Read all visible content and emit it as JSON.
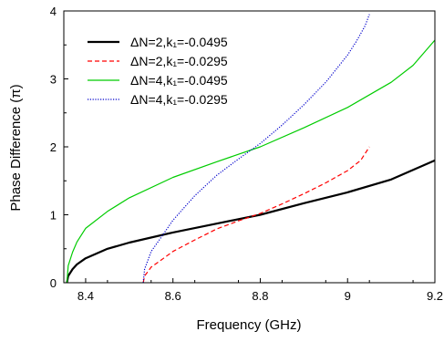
{
  "chart_data": {
    "type": "line",
    "title": "",
    "xlabel": "Frequency (GHz)",
    "ylabel": "Phase Difference (π)",
    "xlim": [
      8.35,
      9.2
    ],
    "ylim": [
      0,
      4
    ],
    "x_ticks": [
      8.4,
      8.6,
      8.8,
      9.0,
      9.2
    ],
    "x_tick_labels": [
      "8.4",
      "8.6",
      "8.8",
      "9",
      "9.2"
    ],
    "y_ticks": [
      0,
      1,
      2,
      3,
      4
    ],
    "y_tick_labels": [
      "0",
      "1",
      "2",
      "3",
      "4"
    ],
    "grid": false,
    "legend_position": "top-left",
    "series": [
      {
        "name": "ΔN=2,k₁=-0.0495",
        "color": "#000000",
        "style": "solid",
        "x": [
          8.357,
          8.36,
          8.37,
          8.38,
          8.4,
          8.45,
          8.5,
          8.6,
          8.7,
          8.8,
          8.9,
          9.0,
          9.1,
          9.2
        ],
        "y": [
          0.0,
          0.1,
          0.2,
          0.27,
          0.36,
          0.5,
          0.59,
          0.74,
          0.87,
          1.0,
          1.17,
          1.33,
          1.52,
          1.8
        ]
      },
      {
        "name": "ΔN=2,k₁=-0.0295",
        "color": "#ff0000",
        "style": "dashed",
        "x": [
          8.532,
          8.535,
          8.55,
          8.57,
          8.6,
          8.65,
          8.7,
          8.75,
          8.8,
          8.85,
          8.9,
          8.95,
          9.0,
          9.03,
          9.05
        ],
        "y": [
          0.0,
          0.1,
          0.23,
          0.32,
          0.46,
          0.63,
          0.79,
          0.91,
          1.02,
          1.16,
          1.31,
          1.47,
          1.65,
          1.8,
          2.0
        ]
      },
      {
        "name": "ΔN=4,k₁=-0.0495",
        "color": "#00cc00",
        "style": "solid",
        "x": [
          8.357,
          8.36,
          8.37,
          8.38,
          8.4,
          8.45,
          8.5,
          8.6,
          8.7,
          8.8,
          8.9,
          9.0,
          9.1,
          9.15,
          9.2
        ],
        "y": [
          0.0,
          0.25,
          0.45,
          0.6,
          0.8,
          1.05,
          1.25,
          1.55,
          1.78,
          2.0,
          2.28,
          2.58,
          2.95,
          3.2,
          3.57
        ]
      },
      {
        "name": "ΔN=4,k₁=-0.0295",
        "color": "#0000cc",
        "style": "dotted",
        "x": [
          8.532,
          8.535,
          8.55,
          8.57,
          8.6,
          8.65,
          8.7,
          8.75,
          8.8,
          8.85,
          8.9,
          8.95,
          9.0,
          9.02,
          9.04,
          9.05
        ],
        "y": [
          0.0,
          0.2,
          0.46,
          0.64,
          0.92,
          1.28,
          1.58,
          1.82,
          2.05,
          2.32,
          2.62,
          2.95,
          3.35,
          3.55,
          3.78,
          3.95
        ]
      }
    ]
  }
}
